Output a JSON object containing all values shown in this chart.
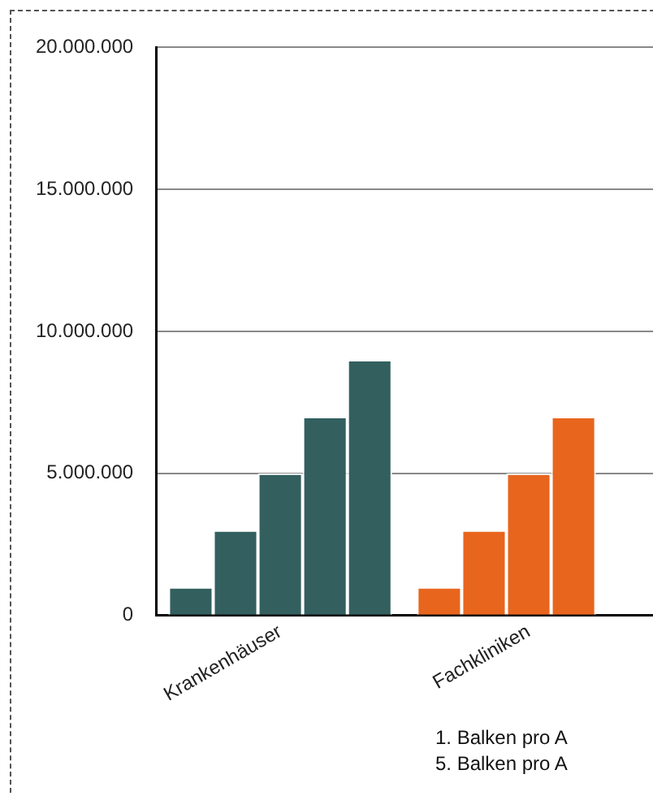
{
  "chart_data": {
    "type": "bar",
    "categories": [
      "Krankenhäuser",
      "Fachkliniken"
    ],
    "series": [
      {
        "colors": [
          "#335f5f",
          "#e8651e"
        ],
        "values": [
          1000000,
          1000000
        ]
      },
      {
        "colors": [
          "#335f5f",
          "#e8651e"
        ],
        "values": [
          3000000,
          3000000
        ]
      },
      {
        "colors": [
          "#335f5f",
          "#e8651e"
        ],
        "values": [
          5000000,
          5000000
        ]
      },
      {
        "colors": [
          "#335f5f",
          "#e8651e"
        ],
        "values": [
          7000000,
          7000000
        ]
      },
      {
        "colors": [
          "#335f5f",
          "#e8651e"
        ],
        "values": [
          9000000,
          null
        ]
      }
    ],
    "ylim": [
      0,
      20000000
    ],
    "yticks": [
      {
        "value": 0,
        "label": "0"
      },
      {
        "value": 5000000,
        "label": "5.000.000"
      },
      {
        "value": 10000000,
        "label": "10.000.000"
      },
      {
        "value": 15000000,
        "label": "15.000.000"
      },
      {
        "value": 20000000,
        "label": "20.000.000"
      }
    ],
    "grid": "y",
    "legend": false,
    "annotations": [
      "1. Balken pro A",
      "5. Balken pro A"
    ]
  }
}
